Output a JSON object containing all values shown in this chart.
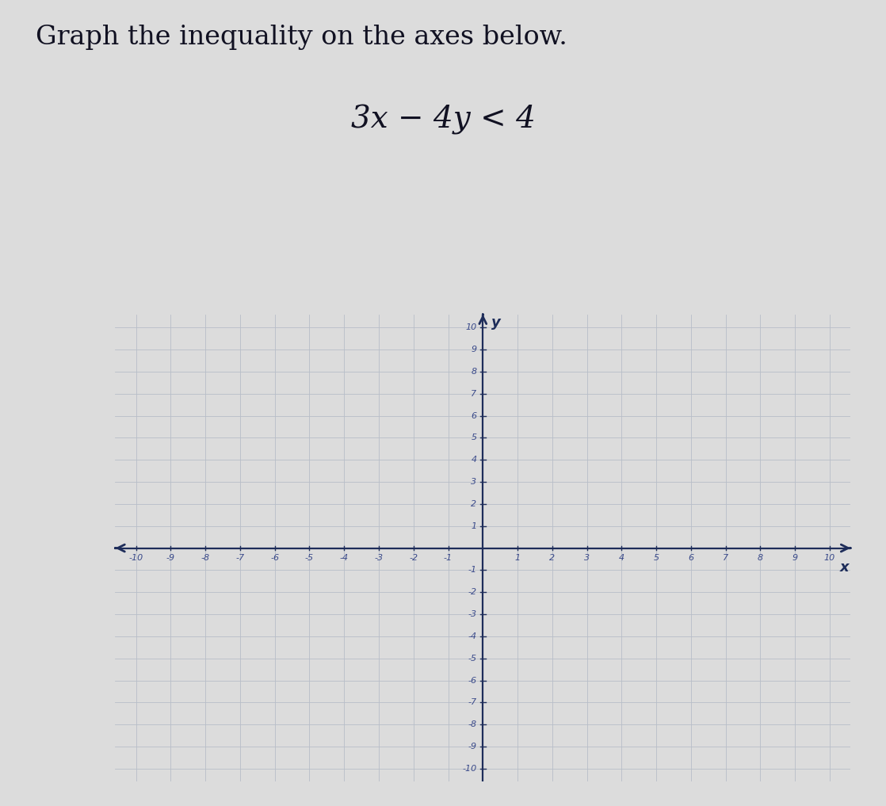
{
  "title_line1": "Graph the inequality on the axes below.",
  "inequality_display": "3x − 4y < 4",
  "xmin": -10,
  "xmax": 10,
  "ymin": -10,
  "ymax": 10,
  "background_color": "#dcdcdc",
  "plot_bg_left": "#d0d4d8",
  "plot_bg_right": "#e0e4e4",
  "grid_color": "#b8bec8",
  "axis_color": "#1e2d5a",
  "tick_label_color": "#3a4a8a",
  "title_color": "#111122",
  "title_fontsize": 24,
  "inequality_fontsize": 28,
  "tick_fontsize": 8,
  "xlabel": "x",
  "ylabel": "y",
  "axis_label_fontsize": 13
}
